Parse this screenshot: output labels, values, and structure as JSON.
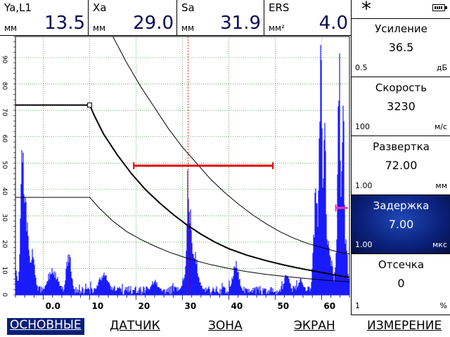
{
  "readouts": [
    {
      "label": "Ya,L1",
      "unit": "мм",
      "value": "13.5"
    },
    {
      "label": "Xa",
      "unit": "мм",
      "value": "29.0"
    },
    {
      "label": "Sa",
      "unit": "мм",
      "value": "31.9"
    },
    {
      "label": "ERS",
      "unit": "мм²",
      "value": "4.0"
    }
  ],
  "status": {
    "asterisk": "*",
    "battery_icon": "battery-icon"
  },
  "params": [
    {
      "name": "Усиление",
      "value": "36.5",
      "min": "0.5",
      "unit": "дБ"
    },
    {
      "name": "Скорость",
      "value": "3230",
      "min": "100",
      "unit": "м/с"
    },
    {
      "name": "Развертка",
      "value": "72.00",
      "min": "1.00",
      "unit": "мм"
    },
    {
      "name": "Задержка",
      "value": "7.00",
      "min": "1.00",
      "unit": "мкс",
      "active": true
    },
    {
      "name": "Отсечка",
      "value": "0",
      "min": "1",
      "unit": "%"
    }
  ],
  "menu": [
    {
      "label": "ОСНОВНЫЕ",
      "active": true
    },
    {
      "label": "ДАТЧИК"
    },
    {
      "label": "ЗОНА"
    },
    {
      "label": "ЭКРАН"
    },
    {
      "label": "ИЗМЕРЕНИЕ"
    }
  ],
  "chart_data": {
    "type": "line",
    "x_ticks": [
      "0.0",
      "10",
      "20",
      "30",
      "40",
      "50",
      "60"
    ],
    "y_ticks": [
      "0",
      "10",
      "20",
      "30",
      "40",
      "50",
      "60",
      "70",
      "80",
      "90"
    ],
    "xlim": [
      -6,
      66
    ],
    "ylim": [
      0,
      98
    ],
    "grid": true,
    "colors": {
      "signal": "#1a1aff",
      "gate": "#e00000",
      "grid": "#2a8a2a",
      "cursor": "#e00000",
      "marker": "#ff2fb0"
    },
    "gate": {
      "start": 19.5,
      "end": 49.5,
      "level": 49
    },
    "cursor_x": 31.2,
    "delay_marker": {
      "x": 63.5,
      "y": 33
    },
    "dac_main": [
      [
        -6,
        72
      ],
      [
        10,
        72
      ],
      [
        11,
        68
      ],
      [
        13,
        61
      ],
      [
        16,
        53
      ],
      [
        19,
        46
      ],
      [
        22,
        40
      ],
      [
        25,
        35
      ],
      [
        28,
        30.5
      ],
      [
        31,
        26.5
      ],
      [
        34,
        23
      ],
      [
        37,
        20
      ],
      [
        40,
        17.5
      ],
      [
        44,
        15
      ],
      [
        48,
        13
      ],
      [
        52,
        11.3
      ],
      [
        56,
        9.8
      ],
      [
        60,
        8.5
      ],
      [
        63,
        7.5
      ],
      [
        66,
        6.6
      ]
    ],
    "dac_upper": [
      [
        15,
        98
      ],
      [
        18,
        88
      ],
      [
        21,
        79
      ],
      [
        24,
        71
      ],
      [
        27,
        63
      ],
      [
        30,
        56
      ],
      [
        33,
        50
      ],
      [
        36,
        44
      ],
      [
        39,
        39
      ],
      [
        42,
        34.5
      ],
      [
        45,
        30.5
      ],
      [
        48,
        27
      ],
      [
        51,
        24
      ],
      [
        54,
        21.5
      ],
      [
        57,
        19.5
      ],
      [
        60,
        18
      ],
      [
        63,
        16.5
      ],
      [
        66,
        15.5
      ]
    ],
    "dac_lower": [
      [
        -6,
        37
      ],
      [
        10,
        37
      ],
      [
        12,
        33
      ],
      [
        15,
        28
      ],
      [
        18,
        24
      ],
      [
        21,
        21
      ],
      [
        24,
        18.5
      ],
      [
        27,
        16.3
      ],
      [
        30,
        14.5
      ],
      [
        33,
        12.9
      ],
      [
        36,
        11.5
      ],
      [
        40,
        10
      ],
      [
        44,
        8.8
      ],
      [
        48,
        7.8
      ],
      [
        52,
        7
      ],
      [
        56,
        6.3
      ],
      [
        60,
        5.7
      ],
      [
        63,
        5.3
      ],
      [
        66,
        5
      ]
    ],
    "signal_peaks": [
      {
        "x": -6,
        "h": 10,
        "w": 0.6
      },
      {
        "x": -4.5,
        "h": 60,
        "w": 0.6
      },
      {
        "x": -4,
        "h": 42,
        "w": 0.7
      },
      {
        "x": -3.5,
        "h": 30,
        "w": 0.8
      },
      {
        "x": -2.5,
        "h": 18,
        "w": 0.9
      },
      {
        "x": 2,
        "h": 11,
        "w": 1.6
      },
      {
        "x": 5.5,
        "h": 17,
        "w": 0.8
      },
      {
        "x": 13,
        "h": 9,
        "w": 1.5
      },
      {
        "x": 24,
        "h": 6,
        "w": 1.2
      },
      {
        "x": 31.2,
        "h": 54,
        "w": 0.35
      },
      {
        "x": 31.5,
        "h": 38,
        "w": 0.8
      },
      {
        "x": 31.9,
        "h": 24,
        "w": 1.6
      },
      {
        "x": 41.5,
        "h": 13,
        "w": 1.0
      },
      {
        "x": 52.5,
        "h": 9,
        "w": 0.9
      },
      {
        "x": 55.5,
        "h": 7,
        "w": 0.9
      },
      {
        "x": 58.8,
        "h": 44,
        "w": 0.7
      },
      {
        "x": 59.8,
        "h": 98,
        "w": 0.5
      },
      {
        "x": 60.6,
        "h": 70,
        "w": 0.6
      },
      {
        "x": 61,
        "h": 30,
        "w": 1.4
      },
      {
        "x": 63.8,
        "h": 98,
        "w": 0.45
      },
      {
        "x": 64.6,
        "h": 85,
        "w": 0.45
      },
      {
        "x": 64.3,
        "h": 45,
        "w": 1.2
      }
    ]
  }
}
